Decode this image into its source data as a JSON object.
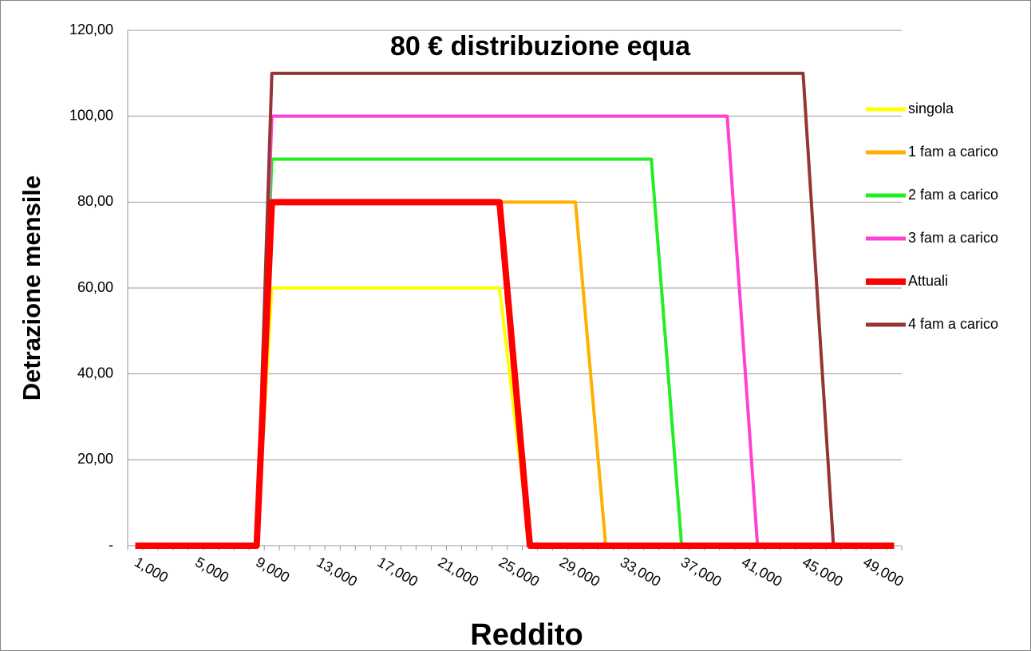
{
  "chart_data": {
    "type": "line",
    "title": "80 €  distribuzione equa",
    "x_label": "Reddito",
    "y_label": "Detrazione mensile",
    "categories": [
      "1,000",
      null,
      null,
      null,
      "5,000",
      null,
      null,
      null,
      "9,000",
      null,
      null,
      null,
      "13,000",
      null,
      null,
      null,
      "17,000",
      null,
      null,
      null,
      "21,000",
      null,
      null,
      null,
      "25,000",
      null,
      null,
      null,
      "29,000",
      null,
      null,
      null,
      "33,000",
      null,
      null,
      null,
      "37,000",
      null,
      null,
      null,
      "41,000",
      null,
      null,
      null,
      "45,000",
      null,
      null,
      null,
      "49,000",
      null,
      null
    ],
    "series": [
      {
        "name": "singola",
        "color": "#ffff00",
        "values": [
          0,
          0,
          0,
          0,
          0,
          0,
          0,
          0,
          0,
          60,
          60,
          60,
          60,
          60,
          60,
          60,
          60,
          60,
          60,
          60,
          60,
          60,
          60,
          60,
          60,
          30,
          0,
          0,
          0,
          0,
          0,
          0,
          0,
          0,
          0,
          0,
          0,
          0,
          0,
          0,
          0,
          0,
          0,
          0,
          0,
          0,
          0,
          0,
          0,
          0,
          0
        ]
      },
      {
        "name": "1 fam a carico",
        "color": "#ffb000",
        "values": [
          0,
          0,
          0,
          0,
          0,
          0,
          0,
          0,
          0,
          80,
          80,
          80,
          80,
          80,
          80,
          80,
          80,
          80,
          80,
          80,
          80,
          80,
          80,
          80,
          80,
          80,
          80,
          80,
          80,
          80,
          40,
          0,
          0,
          0,
          0,
          0,
          0,
          0,
          0,
          0,
          0,
          0,
          0,
          0,
          0,
          0,
          0,
          0,
          0,
          0,
          0
        ]
      },
      {
        "name": "2 fam a carico",
        "color": "#22ee22",
        "values": [
          0,
          0,
          0,
          0,
          0,
          0,
          0,
          0,
          0,
          90,
          90,
          90,
          90,
          90,
          90,
          90,
          90,
          90,
          90,
          90,
          90,
          90,
          90,
          90,
          90,
          90,
          90,
          90,
          90,
          90,
          90,
          90,
          90,
          90,
          90,
          45,
          0,
          0,
          0,
          0,
          0,
          0,
          0,
          0,
          0,
          0,
          0,
          0,
          0,
          0,
          0
        ]
      },
      {
        "name": "3 fam a carico",
        "color": "#ff40d0",
        "values": [
          0,
          0,
          0,
          0,
          0,
          0,
          0,
          0,
          0,
          100,
          100,
          100,
          100,
          100,
          100,
          100,
          100,
          100,
          100,
          100,
          100,
          100,
          100,
          100,
          100,
          100,
          100,
          100,
          100,
          100,
          100,
          100,
          100,
          100,
          100,
          100,
          100,
          100,
          100,
          100,
          50,
          0,
          0,
          0,
          0,
          0,
          0,
          0,
          0,
          0,
          0
        ]
      },
      {
        "name": "Attuali",
        "color": "#ff0000",
        "values": [
          0,
          0,
          0,
          0,
          0,
          0,
          0,
          0,
          0,
          80,
          80,
          80,
          80,
          80,
          80,
          80,
          80,
          80,
          80,
          80,
          80,
          80,
          80,
          80,
          80,
          40,
          0,
          0,
          0,
          0,
          0,
          0,
          0,
          0,
          0,
          0,
          0,
          0,
          0,
          0,
          0,
          0,
          0,
          0,
          0,
          0,
          0,
          0,
          0,
          0,
          0
        ]
      },
      {
        "name": "4 fam a carico",
        "color": "#943634",
        "values": [
          0,
          0,
          0,
          0,
          0,
          0,
          0,
          0,
          0,
          110,
          110,
          110,
          110,
          110,
          110,
          110,
          110,
          110,
          110,
          110,
          110,
          110,
          110,
          110,
          110,
          110,
          110,
          110,
          110,
          110,
          110,
          110,
          110,
          110,
          110,
          110,
          110,
          110,
          110,
          110,
          110,
          110,
          110,
          110,
          110,
          55,
          0,
          0,
          0,
          0,
          0
        ]
      }
    ],
    "ylim": [
      0,
      120
    ],
    "yticks": [
      {
        "value": 0,
        "label": "-"
      },
      {
        "value": 20,
        "label": "20,00"
      },
      {
        "value": 40,
        "label": "40,00"
      },
      {
        "value": 60,
        "label": "60,00"
      },
      {
        "value": 80,
        "label": "80,00"
      },
      {
        "value": 100,
        "label": "100,00"
      },
      {
        "value": 120,
        "label": "120,00"
      }
    ],
    "grid": true,
    "legend": "right"
  }
}
